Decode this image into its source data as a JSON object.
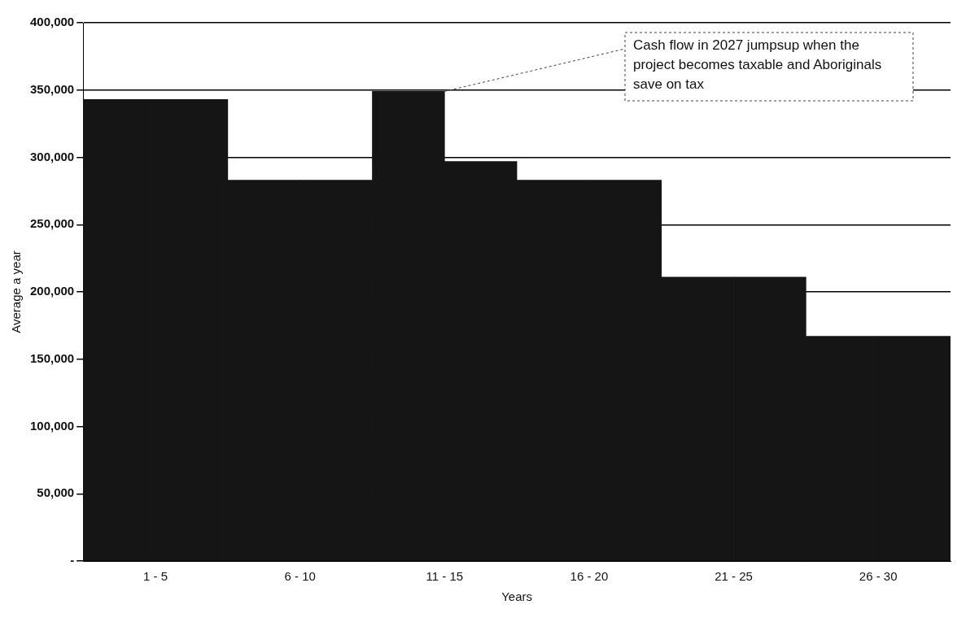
{
  "chart_data": {
    "type": "bar",
    "xlabel": "Years",
    "ylabel": "Average a year",
    "categories": [
      "1 - 5",
      "6 - 10",
      "11 - 15",
      "16 - 20",
      "21 - 25",
      "26 - 30"
    ],
    "series": [
      {
        "color": "#151515",
        "values": [
          343000,
          283000,
          349000,
          283000,
          211000,
          167000
        ]
      },
      {
        "color": "#151515",
        "values": [
          343000,
          283000,
          297000,
          283000,
          211000,
          167000
        ]
      }
    ],
    "ylim": [
      0,
      400000
    ],
    "yticks": [
      {
        "value": 0,
        "label": "-"
      },
      {
        "value": 50000,
        "label": "50,000"
      },
      {
        "value": 100000,
        "label": "100,000"
      },
      {
        "value": 150000,
        "label": "150,000"
      },
      {
        "value": 200000,
        "label": "200,000"
      },
      {
        "value": 250000,
        "label": "250,000"
      },
      {
        "value": 300000,
        "label": "300,000"
      },
      {
        "value": 350000,
        "label": "350,000"
      },
      {
        "value": 400000,
        "label": "400,000"
      }
    ],
    "grid": "y",
    "annotations": [
      {
        "text": "Cash flow in 2027 jumpsup when the project becomes taxable and Aboriginals save on tax",
        "x": "11 - 15",
        "y": 349000
      }
    ]
  }
}
